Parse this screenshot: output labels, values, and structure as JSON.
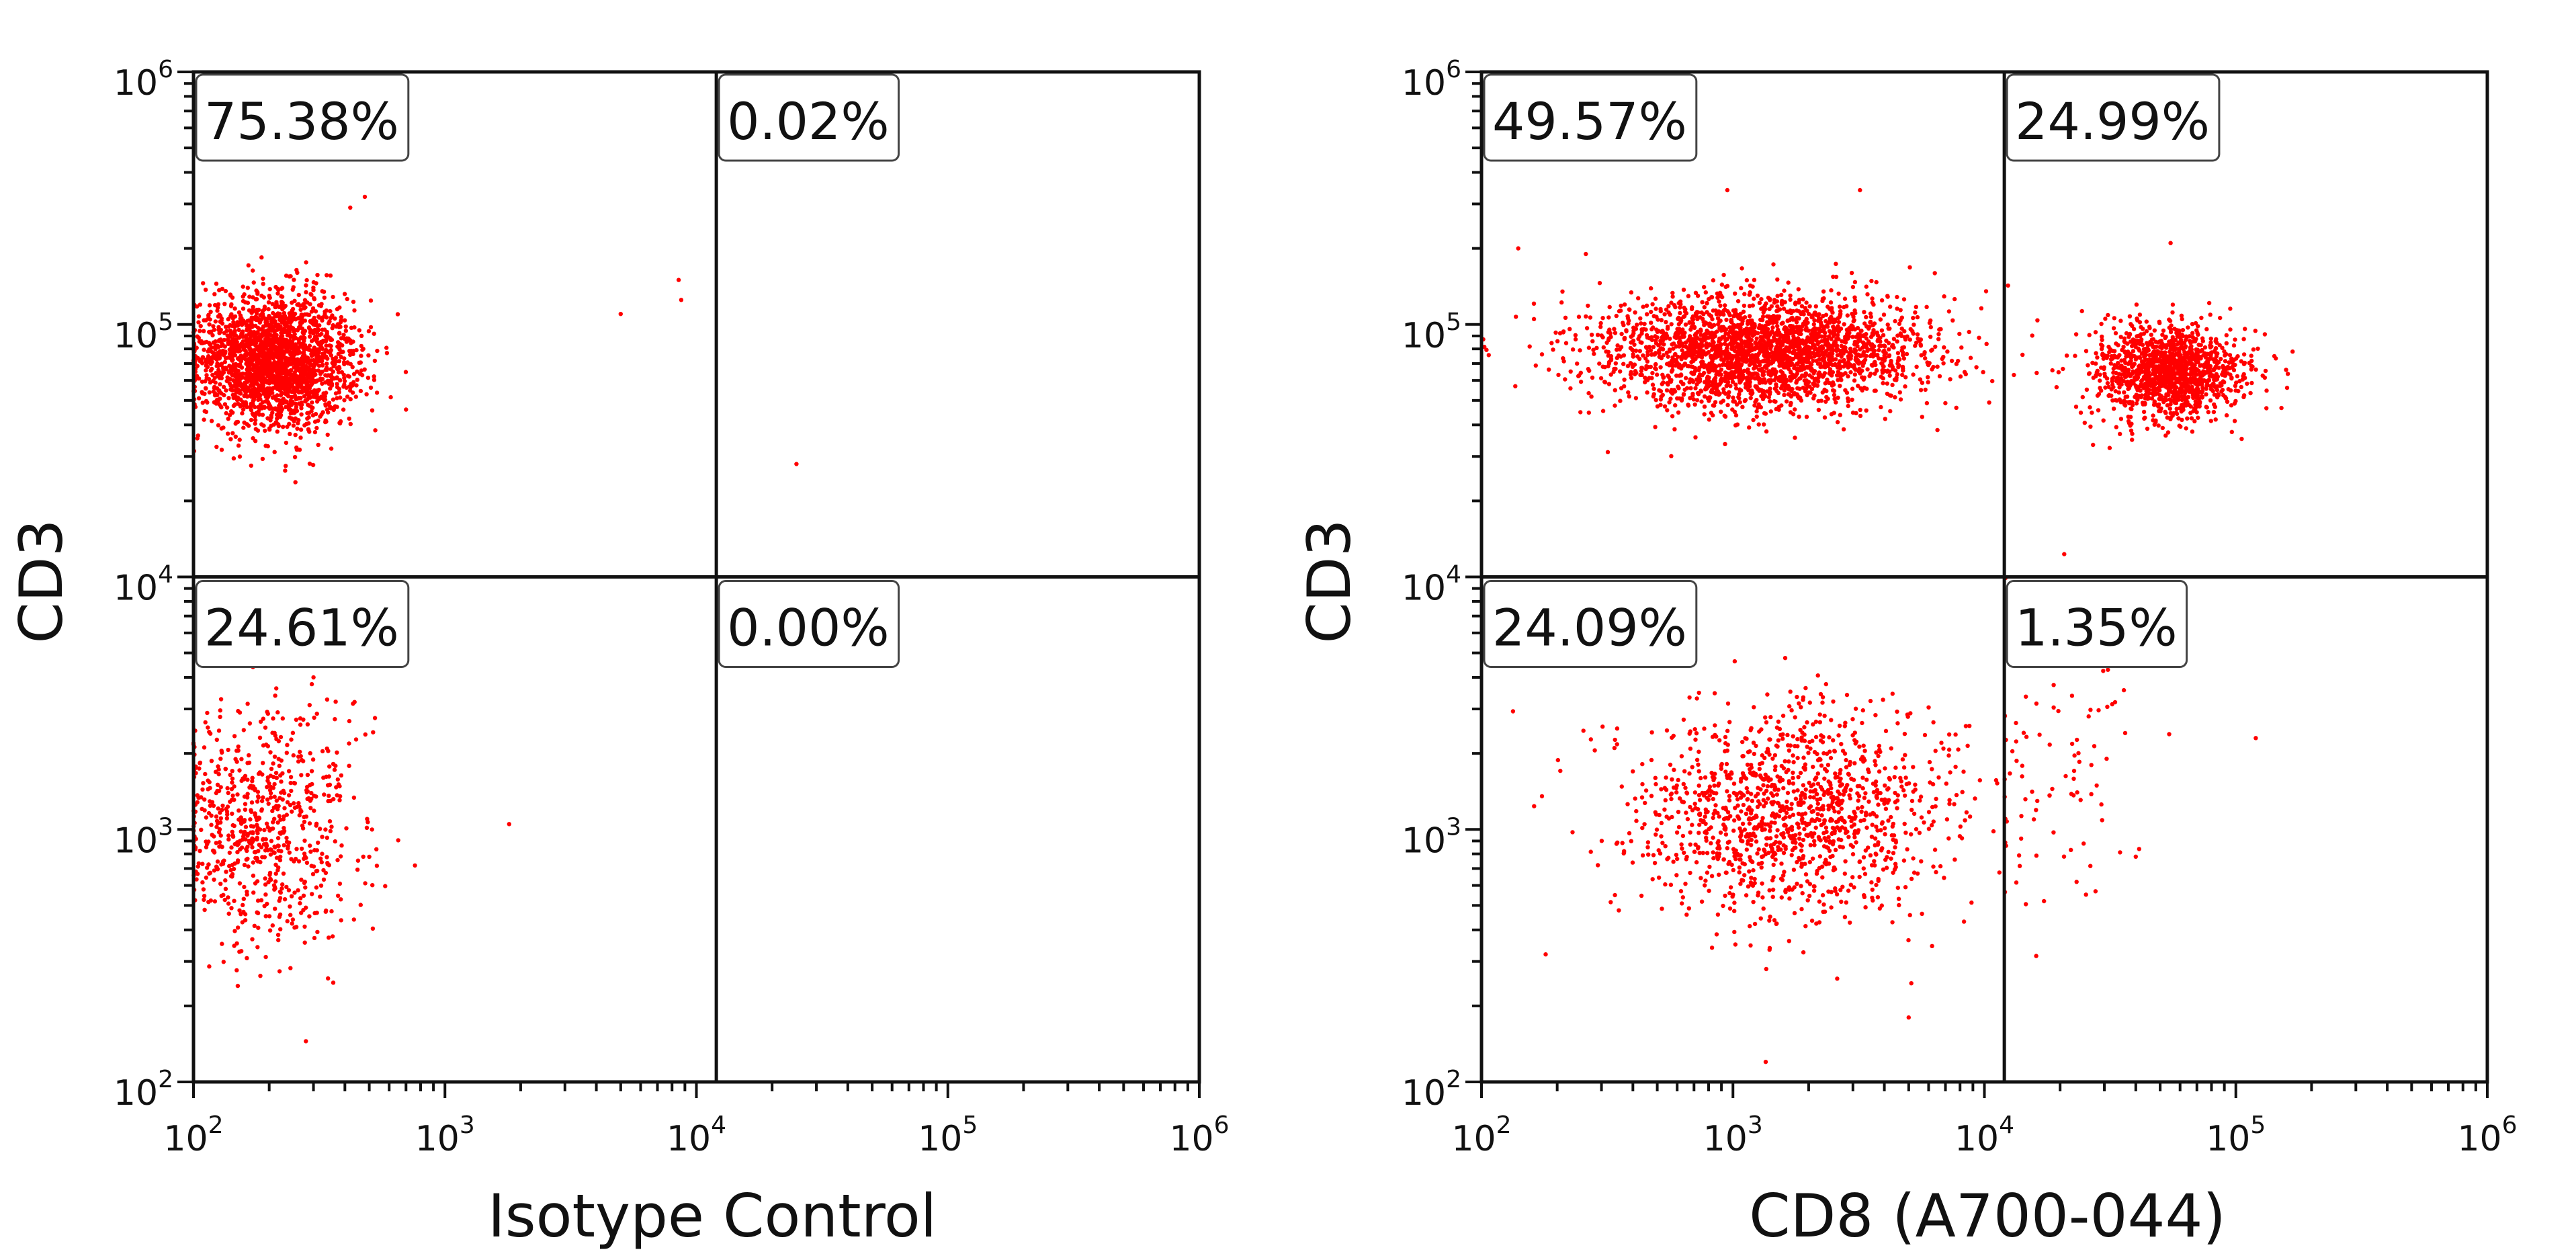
{
  "colors": {
    "dots": "#ff0000",
    "axes": "#111111",
    "gates": "#111111"
  },
  "chart_data": [
    {
      "type": "scatter",
      "xlabel": "Isotype Control",
      "ylabel": "CD3",
      "xscale": "log",
      "yscale": "log",
      "xlim": [
        100,
        1000000
      ],
      "ylim": [
        100,
        1000000
      ],
      "xticks": [
        100,
        1000,
        10000,
        100000,
        1000000
      ],
      "yticks": [
        100,
        1000,
        10000,
        100000,
        1000000
      ],
      "tick_labels": [
        {
          "base": "10",
          "exp": "2"
        },
        {
          "base": "10",
          "exp": "3"
        },
        {
          "base": "10",
          "exp": "4"
        },
        {
          "base": "10",
          "exp": "5"
        },
        {
          "base": "10",
          "exp": "6"
        }
      ],
      "gates": {
        "x": 12000,
        "y": 10000
      },
      "quadrants": [
        {
          "position": "upper-left",
          "label": "75.38%"
        },
        {
          "position": "upper-right",
          "label": "0.02%"
        },
        {
          "position": "lower-left",
          "label": "24.61%"
        },
        {
          "position": "lower-right",
          "label": "0.00%"
        }
      ],
      "clusters": [
        {
          "x": 210,
          "y": 72000,
          "sx_dec": 0.16,
          "sy_dec": 0.13,
          "count": 2200,
          "xmin": 100
        },
        {
          "x": 190,
          "y": 1050,
          "sx_dec": 0.18,
          "sy_dec": 0.24,
          "count": 720,
          "xmin": 100
        }
      ],
      "outliers": [
        [
          5000,
          110000
        ],
        [
          8500,
          150000
        ],
        [
          8700,
          125000
        ],
        [
          25000,
          28000
        ],
        [
          1800,
          1050
        ],
        [
          420,
          290000
        ],
        [
          480,
          320000
        ],
        [
          760,
          720
        ],
        [
          280,
          145
        ],
        [
          150,
          240
        ],
        [
          300,
          4000
        ],
        [
          700,
          46000
        ]
      ]
    },
    {
      "type": "scatter",
      "xlabel": "CD8 (A700-044)",
      "ylabel": "CD3",
      "xscale": "log",
      "yscale": "log",
      "xlim": [
        100,
        1000000
      ],
      "ylim": [
        100,
        1000000
      ],
      "xticks": [
        100,
        1000,
        10000,
        100000,
        1000000
      ],
      "yticks": [
        100,
        1000,
        10000,
        100000,
        1000000
      ],
      "tick_labels": [
        {
          "base": "10",
          "exp": "2"
        },
        {
          "base": "10",
          "exp": "3"
        },
        {
          "base": "10",
          "exp": "4"
        },
        {
          "base": "10",
          "exp": "5"
        },
        {
          "base": "10",
          "exp": "6"
        }
      ],
      "gates": {
        "x": 12000,
        "y": 10000
      },
      "quadrants": [
        {
          "position": "upper-left",
          "label": "49.57%"
        },
        {
          "position": "upper-right",
          "label": "24.99%"
        },
        {
          "position": "lower-left",
          "label": "24.09%"
        },
        {
          "position": "lower-right",
          "label": "1.35%"
        }
      ],
      "clusters": [
        {
          "x": 1300,
          "y": 78000,
          "sx_dec": 0.32,
          "sy_dec": 0.11,
          "count": 2600,
          "xmin": 100
        },
        {
          "x": 55000,
          "y": 65000,
          "sx_dec": 0.15,
          "sy_dec": 0.09,
          "count": 1300,
          "xmin": 12000
        },
        {
          "x": 1700,
          "y": 1150,
          "sx_dec": 0.32,
          "sy_dec": 0.21,
          "count": 1300,
          "xmin": 100
        },
        {
          "x": 20000,
          "y": 1700,
          "sx_dec": 0.18,
          "sy_dec": 0.3,
          "count": 90,
          "xmin": 12000
        }
      ],
      "outliers": [
        [
          140,
          200000
        ],
        [
          260,
          190000
        ],
        [
          950,
          340000
        ],
        [
          3200,
          340000
        ],
        [
          55000,
          210000
        ],
        [
          160,
          5000
        ],
        [
          1350,
          120
        ],
        [
          120000,
          2300
        ],
        [
          40000,
          780
        ],
        [
          5000,
          180
        ],
        [
          180,
          320
        ]
      ]
    }
  ]
}
